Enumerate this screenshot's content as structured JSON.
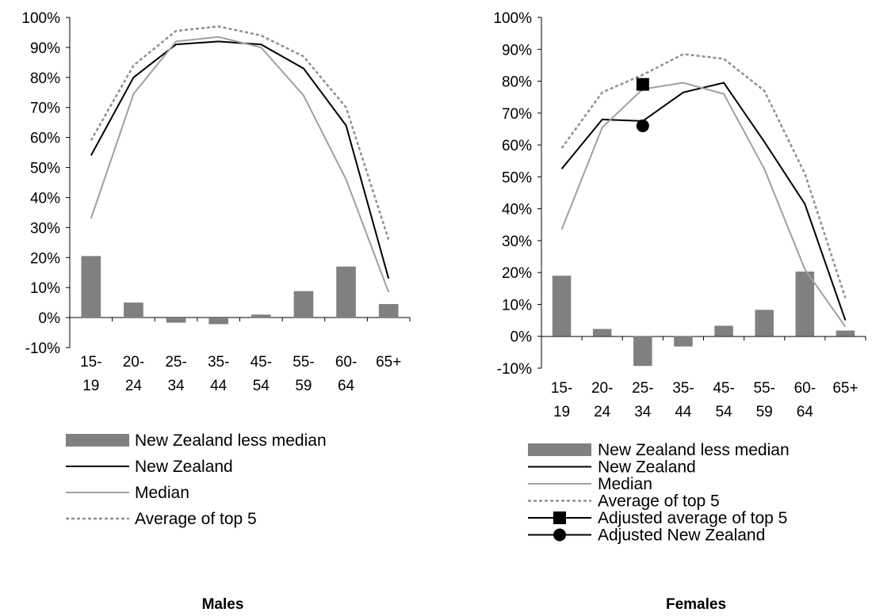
{
  "chart_data": [
    {
      "type": "bar+line",
      "caption": "Males",
      "categories": [
        "15-\n19",
        "20-\n24",
        "25-\n34",
        "35-\n44",
        "45-\n54",
        "55-\n59",
        "60-\n64",
        "65+"
      ],
      "ylim": [
        -0.1,
        1.0
      ],
      "yticks": [
        "100%",
        "90%",
        "80%",
        "70%",
        "60%",
        "50%",
        "40%",
        "30%",
        "20%",
        "10%",
        "0%",
        "-10%"
      ],
      "grid": false,
      "legend_position": "bottom",
      "series": [
        {
          "name": "New Zealand less median",
          "kind": "bar",
          "color": "#808080",
          "values": [
            0.205,
            0.05,
            -0.017,
            -0.022,
            0.01,
            0.088,
            0.17,
            0.045
          ]
        },
        {
          "name": "New Zealand",
          "kind": "line",
          "color": "#000000",
          "style": "solid",
          "values": [
            0.54,
            0.8,
            0.91,
            0.92,
            0.91,
            0.83,
            0.64,
            0.13
          ]
        },
        {
          "name": "Median",
          "kind": "line",
          "color": "#a0a0a0",
          "style": "solid",
          "values": [
            0.33,
            0.745,
            0.92,
            0.935,
            0.9,
            0.74,
            0.46,
            0.085
          ]
        },
        {
          "name": "Average of top 5",
          "kind": "line",
          "color": "#909090",
          "style": "dashed",
          "values": [
            0.59,
            0.84,
            0.955,
            0.97,
            0.94,
            0.87,
            0.7,
            0.26
          ]
        }
      ]
    },
    {
      "type": "bar+line",
      "caption": "Females",
      "categories": [
        "15-\n19",
        "20-\n24",
        "25-\n34",
        "35-\n44",
        "45-\n54",
        "55-\n59",
        "60-\n64",
        "65+"
      ],
      "ylim": [
        -0.1,
        1.0
      ],
      "yticks": [
        "100%",
        "90%",
        "80%",
        "70%",
        "60%",
        "50%",
        "40%",
        "30%",
        "20%",
        "10%",
        "0%",
        "-10%"
      ],
      "grid": false,
      "legend_position": "bottom",
      "series": [
        {
          "name": "New Zealand less median",
          "kind": "bar",
          "color": "#808080",
          "values": [
            0.19,
            0.023,
            -0.093,
            -0.032,
            0.033,
            0.083,
            0.203,
            0.018
          ]
        },
        {
          "name": "New Zealand",
          "kind": "line",
          "color": "#000000",
          "style": "solid",
          "values": [
            0.525,
            0.68,
            0.675,
            0.765,
            0.795,
            0.61,
            0.415,
            0.05
          ]
        },
        {
          "name": "Median",
          "kind": "line",
          "color": "#a0a0a0",
          "style": "solid",
          "values": [
            0.335,
            0.655,
            0.775,
            0.795,
            0.76,
            0.525,
            0.21,
            0.03
          ]
        },
        {
          "name": "Average of top 5",
          "kind": "line",
          "color": "#909090",
          "style": "dashed",
          "values": [
            0.59,
            0.765,
            0.82,
            0.885,
            0.87,
            0.77,
            0.51,
            0.12
          ]
        },
        {
          "name": "Adjusted average of top 5",
          "kind": "marker",
          "marker": "square",
          "color": "#000000",
          "category": "25-\n34",
          "value": 0.79
        },
        {
          "name": "Adjusted New Zealand",
          "kind": "marker",
          "marker": "circle",
          "color": "#000000",
          "category": "25-\n34",
          "value": 0.66
        }
      ]
    }
  ]
}
